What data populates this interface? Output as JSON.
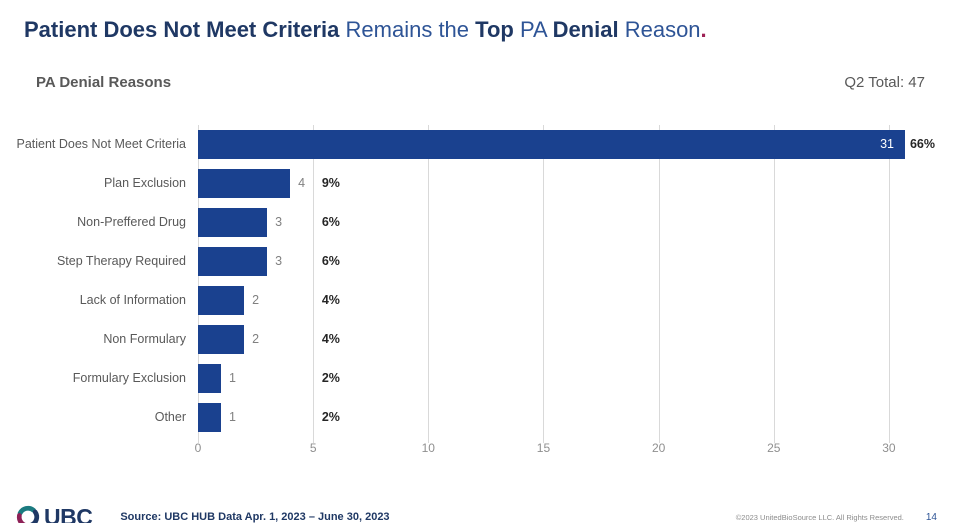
{
  "title": {
    "segments": [
      {
        "text": "Patient Does Not Meet Criteria",
        "style": "bold"
      },
      {
        "text": " Remains the ",
        "style": "regular"
      },
      {
        "text": "Top",
        "style": "bold"
      },
      {
        "text": " PA ",
        "style": "regular"
      },
      {
        "text": "Denial",
        "style": "bold"
      },
      {
        "text": " Reason",
        "style": "regular"
      },
      {
        "text": ".",
        "style": "accent"
      }
    ]
  },
  "header": {
    "chart_title": "PA Denial Reasons",
    "total_label": "Q2 Total: 47"
  },
  "chart_data": {
    "type": "bar",
    "orientation": "horizontal",
    "title": "PA Denial Reasons",
    "categories": [
      "Patient Does Not Meet Criteria",
      "Plan Exclusion",
      "Non-Preffered Drug",
      "Step Therapy Required",
      "Lack of Information",
      "Non Formulary",
      "Formulary Exclusion",
      "Other"
    ],
    "values": [
      31,
      4,
      3,
      3,
      2,
      2,
      1,
      1
    ],
    "percent_labels": [
      "66%",
      "9%",
      "6%",
      "6%",
      "4%",
      "4%",
      "2%",
      "2%"
    ],
    "total": 47,
    "x_ticks": [
      0,
      5,
      10,
      15,
      20,
      25,
      30
    ],
    "xlim": [
      0,
      32
    ],
    "grid": true,
    "legend": false,
    "bar_color": "#1A418F",
    "gridline_color": "#D9D9D9"
  },
  "footer": {
    "logo_text": "UBC",
    "source": "Source: UBC HUB Data Apr. 1, 2023 – June 30, 2023",
    "copyright": "©2023 UnitedBioSource LLC. All Rights Reserved.",
    "page_number": "14"
  },
  "colors": {
    "title_bold": "#1F3864",
    "title_regular": "#2E5496",
    "title_accent": "#9E2155",
    "bar": "#1A418F",
    "gridline": "#D9D9D9",
    "category_label": "#595959",
    "value_label": "#808080",
    "percent_label": "#262626",
    "axis_label": "#8F8F8F"
  }
}
